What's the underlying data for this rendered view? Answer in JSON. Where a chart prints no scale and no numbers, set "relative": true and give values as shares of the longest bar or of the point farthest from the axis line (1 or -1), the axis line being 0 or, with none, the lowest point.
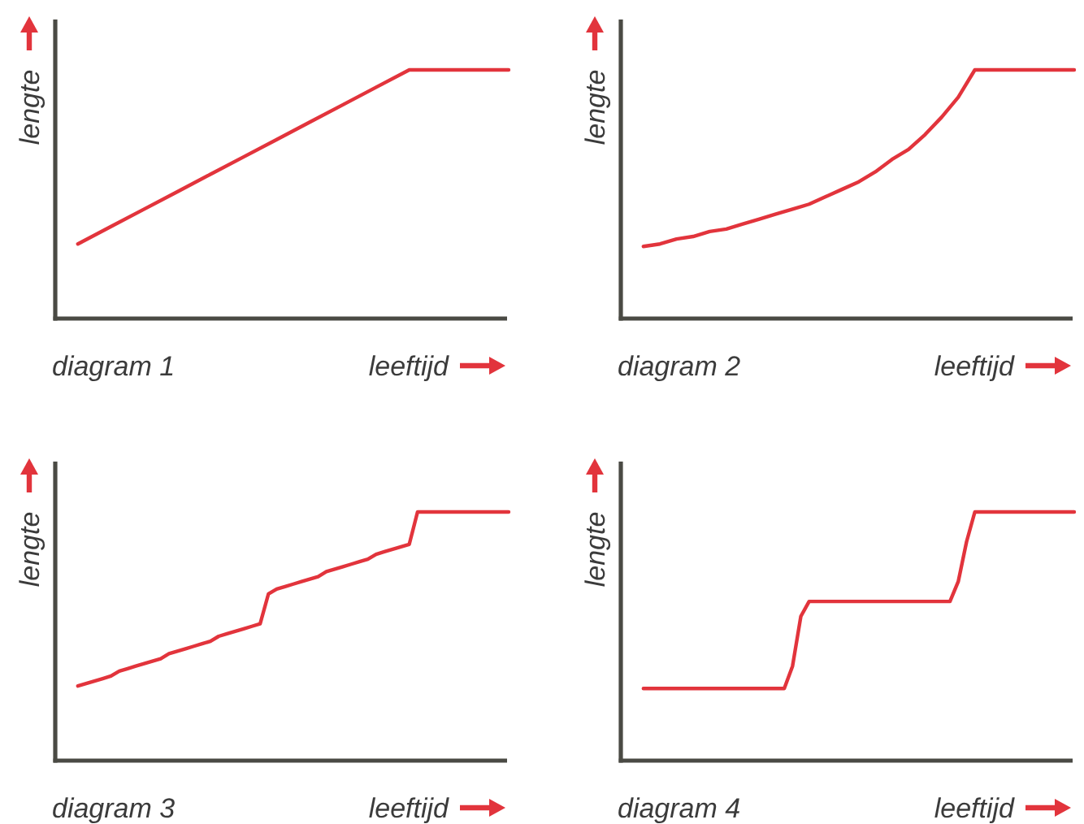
{
  "chart_data": [
    {
      "type": "line",
      "title": "diagram 1",
      "xlabel": "leeftijd",
      "ylabel": "lengte",
      "relative": true,
      "categories": [
        null,
        null,
        null,
        null,
        null,
        null,
        null,
        null,
        null,
        null,
        null,
        null,
        null,
        null
      ],
      "series": [
        {
          "color": "#e2343c",
          "values": [
            0.3,
            0.37,
            0.44,
            0.51,
            0.58,
            0.65,
            0.72,
            0.79,
            0.86,
            0.93,
            1,
            1,
            1,
            1
          ]
        }
      ]
    },
    {
      "type": "line",
      "title": "diagram 2",
      "xlabel": "leeftijd",
      "ylabel": "lengte",
      "relative": true,
      "categories": [
        null,
        null,
        null,
        null,
        null,
        null,
        null,
        null,
        null,
        null,
        null,
        null,
        null,
        null,
        null,
        null,
        null,
        null,
        null,
        null,
        null,
        null,
        null,
        null,
        null,
        null,
        null
      ],
      "series": [
        {
          "color": "#e2343c",
          "values": [
            0.29,
            0.3,
            0.32,
            0.33,
            0.35,
            0.36,
            0.38,
            0.4,
            0.42,
            0.44,
            0.46,
            0.49,
            0.52,
            0.55,
            0.59,
            0.64,
            0.68,
            0.74,
            0.81,
            0.89,
            1,
            1,
            1,
            1,
            1,
            1,
            1
          ]
        }
      ]
    },
    {
      "type": "line",
      "title": "diagram 3",
      "xlabel": "leeftijd",
      "ylabel": "lengte",
      "relative": true,
      "categories": [
        null,
        null,
        null,
        null,
        null,
        null,
        null,
        null,
        null,
        null,
        null,
        null,
        null,
        null,
        null,
        null,
        null,
        null,
        null,
        null,
        null,
        null,
        null,
        null,
        null,
        null,
        null,
        null,
        null,
        null,
        null,
        null,
        null,
        null,
        null,
        null,
        null,
        null,
        null,
        null,
        null,
        null,
        null,
        null,
        null,
        null,
        null,
        null,
        null,
        null,
        null,
        null,
        null
      ],
      "series": [
        {
          "color": "#e2343c",
          "values": [
            0.3,
            0.31,
            0.32,
            0.33,
            0.34,
            0.36,
            0.37,
            0.38,
            0.39,
            0.4,
            0.41,
            0.43,
            0.44,
            0.45,
            0.46,
            0.47,
            0.48,
            0.5,
            0.51,
            0.52,
            0.53,
            0.54,
            0.55,
            0.67,
            0.69,
            0.7,
            0.71,
            0.72,
            0.73,
            0.74,
            0.76,
            0.77,
            0.78,
            0.79,
            0.8,
            0.81,
            0.83,
            0.84,
            0.85,
            0.86,
            0.87,
            1,
            1,
            1,
            1,
            1,
            1,
            1,
            1,
            1,
            1,
            1,
            1
          ]
        }
      ]
    },
    {
      "type": "line",
      "title": "diagram 4",
      "xlabel": "leeftijd",
      "ylabel": "lengte",
      "relative": true,
      "categories": [
        null,
        null,
        null,
        null,
        null,
        null,
        null,
        null,
        null,
        null,
        null,
        null,
        null,
        null,
        null,
        null,
        null,
        null,
        null,
        null,
        null,
        null,
        null,
        null,
        null,
        null,
        null,
        null,
        null,
        null,
        null,
        null,
        null,
        null,
        null,
        null,
        null,
        null,
        null,
        null,
        null,
        null,
        null,
        null,
        null,
        null,
        null,
        null,
        null,
        null,
        null,
        null,
        null
      ],
      "series": [
        {
          "color": "#e2343c",
          "values": [
            0.29,
            0.29,
            0.29,
            0.29,
            0.29,
            0.29,
            0.29,
            0.29,
            0.29,
            0.29,
            0.29,
            0.29,
            0.29,
            0.29,
            0.29,
            0.29,
            0.29,
            0.29,
            0.38,
            0.58,
            0.64,
            0.64,
            0.64,
            0.64,
            0.64,
            0.64,
            0.64,
            0.64,
            0.64,
            0.64,
            0.64,
            0.64,
            0.64,
            0.64,
            0.64,
            0.64,
            0.64,
            0.64,
            0.72,
            0.88,
            1,
            1,
            1,
            1,
            1,
            1,
            1,
            1,
            1,
            1,
            1,
            1,
            1
          ]
        }
      ]
    }
  ]
}
